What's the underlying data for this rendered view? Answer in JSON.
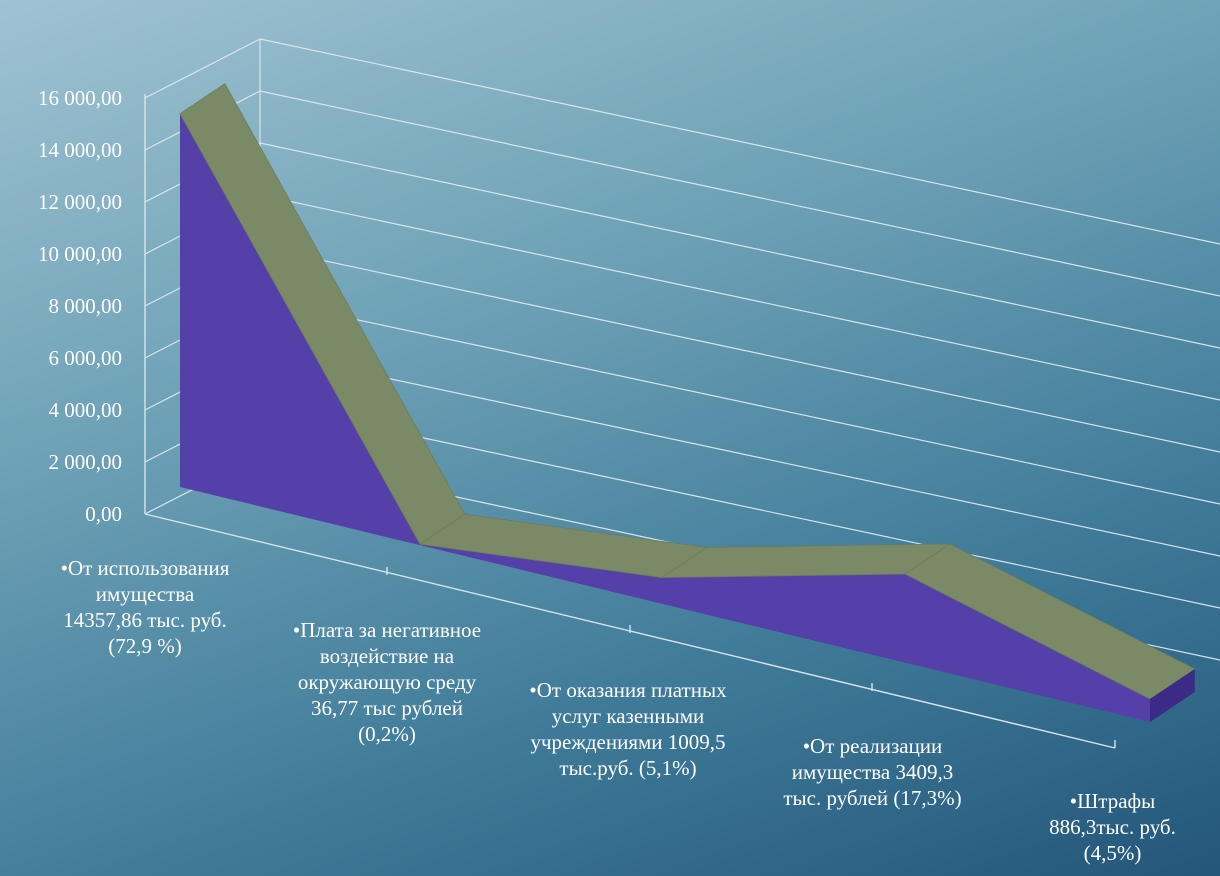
{
  "chart_data": {
    "type": "area",
    "categories": [
      "•От использования имущества 14357,86 тыс. руб. (72,9 %)",
      "•Плата за негативное воздействие на окружающую среду 36,77 тыс рублей (0,2%)",
      "•От оказания платных услуг казенными учреждениями 1009,5 тыс.руб. (5,1%)",
      "•От реализации имущества 3409,3 тыс. рублей (17,3%)",
      "•Штрафы 886,3тыс. руб. (4,5%)"
    ],
    "values": [
      14357.86,
      36.77,
      1009.5,
      3409.3,
      886.3
    ],
    "y_tick_labels": [
      "0,00",
      "2 000,00",
      "4 000,00",
      "6 000,00",
      "8 000,00",
      "10 000,00",
      "12 000,00",
      "14 000,00",
      "16 000,00"
    ],
    "ylim": [
      0,
      16000
    ],
    "grid": true,
    "legend": "none",
    "colors": {
      "front": "#553fa8",
      "top": "#7b8a66",
      "side": "#3b2a86",
      "grid": "#d9e4ea"
    }
  }
}
